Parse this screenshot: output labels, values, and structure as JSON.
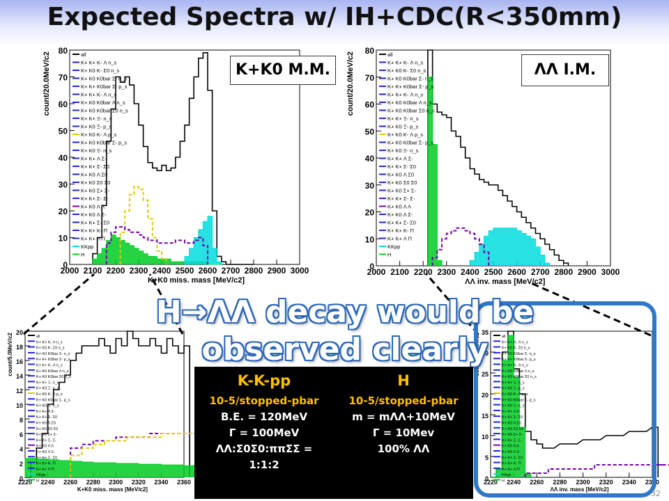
{
  "title": "Expected Spectra w/ IH+CDC(R<350mm)",
  "callout": [
    "H→ΛΛ decay would be",
    "observed clearly"
  ],
  "page_number": "32",
  "legend_entries": [
    "all",
    "K+ K+ K- Λ n_s",
    "K+ K0 K- Σ0 n_s",
    "K+ K0 K0bar Σ- n_s",
    "K+ K+ K0bar Σ- p_s",
    "K+ K+ K- Λ n_s",
    "K+ K0 K0bar Λ n_s",
    "K+ K0 K0bar Σ0 n_s",
    "K+ K+ Ξ- n_s",
    "K+ K0 Ξ- p_s",
    "K+ K0 K- Λ p_s",
    "K+ K0 K0bar Σ- p_s",
    "K+ K0 Ξ- n_s",
    "K+ K+ Λ Σ-",
    "K+ K+ Σ- Σ0",
    "K+ K0 Λ Σ0",
    "K+ K0 Σ0 Σ0",
    "K+ K0 Σ+ Σ-",
    "K+ K+ Σ- Σ-",
    "K+ K0 Λ Λ",
    "K+ K0 Λ Σ-",
    "K+ K+ Σ- Σ0",
    "K+ K+ K- Π",
    "K+ K+ Λ Π",
    "KKpp",
    "H"
  ],
  "info": {
    "left": {
      "header": "K-K-pp",
      "rate": "10-5/stopped-pbar",
      "be": "B.E. = 120MeV",
      "gamma": "Γ = 100MeV",
      "ratio": "ΛΛ:Σ0Σ0:ππΣΣ =",
      "ratio2": "1:1:2"
    },
    "right": {
      "header": "H",
      "rate": "10-5/stopped-pbar",
      "mass": "m = mΛΛ+10MeV",
      "gamma": "Γ = 10Mev",
      "br": "100% ΛΛ"
    }
  },
  "colors": {
    "all": "#000000",
    "H": "#00cc22",
    "KKpp": "#00dddd",
    "s1": "#dd0000",
    "s2": "#2222dd",
    "s3": "#7700aa",
    "s4": "#ddcc00",
    "s5": "#009900",
    "s6": "#ff66cc",
    "s7": "#996600",
    "s8": "#00aaaa"
  },
  "chart_data": [
    {
      "type": "line",
      "tag": "K+K0 M.M.",
      "xlabel": "K+K0 miss. mass [MeV/c2]",
      "ylabel": "count/20.0MeV/c2",
      "xlim": [
        2000,
        3000
      ],
      "ylim": [
        0,
        80
      ],
      "xticks": [
        2000,
        2100,
        2200,
        2300,
        2400,
        2500,
        2600,
        2700,
        2800,
        2900,
        3000
      ],
      "yticks": [
        0,
        10,
        20,
        30,
        40,
        50,
        60,
        70,
        80
      ],
      "series": [
        {
          "name": "all",
          "x": [
            2100,
            2120,
            2140,
            2160,
            2180,
            2200,
            2220,
            2240,
            2260,
            2280,
            2300,
            2320,
            2340,
            2360,
            2380,
            2400,
            2420,
            2440,
            2460,
            2480,
            2500,
            2520,
            2540,
            2560,
            2580,
            2600,
            2620,
            2640,
            2660,
            2680,
            2700,
            2720,
            2740,
            2760,
            2780
          ],
          "values": [
            4,
            10,
            22,
            46,
            58,
            70,
            68,
            70,
            67,
            60,
            52,
            44,
            38,
            36,
            35,
            37,
            35,
            36,
            40,
            46,
            52,
            62,
            70,
            77,
            79,
            65,
            20,
            3,
            1,
            0,
            0,
            0,
            0,
            0,
            0
          ]
        },
        {
          "name": "H",
          "x": [
            2100,
            2120,
            2140,
            2160,
            2180,
            2200,
            2220,
            2240,
            2260,
            2280,
            2300,
            2320,
            2340,
            2360,
            2380,
            2400,
            2420,
            2440,
            2460,
            2480,
            2500,
            2520,
            2540,
            2560,
            2580,
            2600,
            2620,
            2640
          ],
          "values": [
            2,
            4,
            6,
            9,
            11,
            10,
            9,
            8,
            7,
            6,
            5,
            4,
            3,
            3,
            2,
            2,
            2,
            1,
            1,
            1,
            1,
            1,
            1,
            1,
            1,
            0,
            0,
            0
          ]
        },
        {
          "name": "KKpp",
          "x": [
            2500,
            2520,
            2540,
            2560,
            2580,
            2600,
            2620,
            2640
          ],
          "values": [
            3,
            6,
            10,
            13,
            16,
            18,
            6,
            1
          ]
        },
        {
          "name": "K+ K0 K- Λ p_s",
          "x": [
            2220,
            2240,
            2260,
            2280,
            2300,
            2320,
            2340,
            2360,
            2380,
            2400
          ],
          "values": [
            12,
            20,
            26,
            29,
            28,
            24,
            17,
            10,
            5,
            2
          ]
        },
        {
          "name": "K+ K0 Λ Λ",
          "x": [
            2160,
            2180,
            2200,
            2220,
            2240,
            2260,
            2280,
            2300,
            2320,
            2340,
            2360,
            2380,
            2400,
            2420,
            2440,
            2460,
            2480,
            2500,
            2520,
            2540,
            2560,
            2580
          ],
          "values": [
            8,
            12,
            14,
            14,
            13,
            12,
            12,
            11,
            10,
            9,
            9,
            8,
            8,
            8,
            8,
            9,
            9,
            8,
            8,
            9,
            10,
            7
          ]
        }
      ]
    },
    {
      "type": "line",
      "tag": "ΛΛ I.M.",
      "xlabel": "ΛΛ inv. mass [MeV/c2]",
      "ylabel": "count/20.0MeV/c2",
      "xlim": [
        2000,
        3000
      ],
      "ylim": [
        0,
        80
      ],
      "xticks": [
        2000,
        2100,
        2200,
        2300,
        2400,
        2500,
        2600,
        2700,
        2800,
        2900,
        3000
      ],
      "yticks": [
        0,
        10,
        20,
        30,
        40,
        50,
        60,
        70,
        80
      ],
      "series": [
        {
          "name": "all",
          "x": [
            2220,
            2240,
            2260,
            2280,
            2300,
            2320,
            2340,
            2360,
            2380,
            2400,
            2420,
            2440,
            2460,
            2480,
            2500,
            2520,
            2540,
            2560,
            2580,
            2600,
            2620,
            2640,
            2660,
            2680,
            2700,
            2720,
            2740,
            2760,
            2780,
            2800
          ],
          "values": [
            80,
            60,
            57,
            56,
            55,
            50,
            48,
            44,
            40,
            36,
            34,
            32,
            31,
            30,
            30,
            28,
            26,
            24,
            22,
            20,
            18,
            16,
            14,
            12,
            10,
            8,
            6,
            4,
            2,
            1
          ]
        },
        {
          "name": "H",
          "x": [
            2220,
            2240,
            2260
          ],
          "values": [
            70,
            45,
            2
          ]
        },
        {
          "name": "KKpp",
          "x": [
            2400,
            2420,
            2440,
            2460,
            2480,
            2500,
            2520,
            2540,
            2560,
            2580,
            2600,
            2620,
            2640,
            2660,
            2680,
            2700,
            2720
          ],
          "values": [
            2,
            5,
            8,
            11,
            13,
            14,
            14,
            14,
            14,
            14,
            13,
            12,
            11,
            10,
            7,
            4,
            1
          ]
        },
        {
          "name": "K+ K0 Λ Λ",
          "x": [
            2240,
            2260,
            2280,
            2300,
            2320,
            2340,
            2360,
            2380,
            2400,
            2420,
            2440,
            2460
          ],
          "values": [
            3,
            6,
            10,
            12,
            13,
            14,
            14,
            13,
            12,
            10,
            8,
            5
          ]
        }
      ]
    },
    {
      "type": "line",
      "xlabel": "K+K0 miss. mass [MeV/c2]",
      "ylabel": "count/5.0MeV/c2",
      "xlim": [
        2220,
        2360
      ],
      "ylim": [
        0,
        20
      ],
      "xticks": [
        2220,
        2240,
        2260,
        2280,
        2300,
        2320,
        2340,
        2360
      ],
      "yticks": [
        0,
        2,
        4,
        6,
        8,
        10,
        12,
        14,
        16,
        18,
        20
      ],
      "series": [
        {
          "name": "all",
          "x": [
            2220,
            2225,
            2230,
            2235,
            2240,
            2245,
            2250,
            2255,
            2260,
            2265,
            2270,
            2275,
            2280,
            2285,
            2290,
            2295,
            2300,
            2305,
            2310,
            2315,
            2320,
            2325,
            2330,
            2335,
            2340,
            2345,
            2350,
            2355,
            2360
          ],
          "values": [
            0,
            2,
            4,
            6,
            10,
            12,
            13,
            14,
            16,
            17,
            18,
            18,
            18,
            19,
            18,
            17,
            19,
            18,
            20,
            19,
            18,
            18,
            19,
            18,
            17,
            19,
            18,
            17,
            18
          ]
        },
        {
          "name": "H",
          "x": [
            2220,
            2230,
            2240,
            2250,
            2260,
            2270,
            2280,
            2290,
            2300,
            2310,
            2320,
            2330,
            2340,
            2350,
            2360
          ],
          "values": [
            2.6,
            2.5,
            2.4,
            2.3,
            2.2,
            2.1,
            2.0,
            2.0,
            1.9,
            1.9,
            1.8,
            1.8,
            1.7,
            1.7,
            1.6
          ]
        },
        {
          "name": "K+ K0 Λ Λ",
          "x": [
            2260,
            2270,
            2280,
            2290,
            2300,
            2310,
            2320,
            2330,
            2340,
            2350,
            2360
          ],
          "values": [
            4,
            4.5,
            5,
            5,
            5.5,
            5.5,
            5.5,
            6,
            6,
            6,
            6
          ]
        },
        {
          "name": "K+ K0 K- Λ p_s",
          "x": [
            2260,
            2270,
            2280,
            2290,
            2300,
            2310,
            2320,
            2330,
            2340,
            2350,
            2360
          ],
          "values": [
            3,
            4,
            4.5,
            5,
            5,
            5.5,
            5.5,
            5.5,
            6,
            6,
            6
          ]
        }
      ]
    },
    {
      "type": "line",
      "xlabel": "ΛΛ inv. mass [MeV/c2]",
      "ylabel": "count/5.0MeV/c2",
      "xlim": [
        2220,
        2360
      ],
      "ylim": [
        0,
        35
      ],
      "xticks": [
        2220,
        2240,
        2260,
        2280,
        2300,
        2320,
        2340,
        2360
      ],
      "yticks": [
        0,
        5,
        10,
        15,
        20,
        25,
        30,
        35
      ],
      "series": [
        {
          "name": "all",
          "x": [
            2220,
            2225,
            2230,
            2235,
            2240,
            2245,
            2250,
            2255,
            2260,
            2265,
            2270,
            2280,
            2290,
            2300,
            2310,
            2320,
            2330,
            2340,
            2350,
            2360
          ],
          "values": [
            0,
            2,
            30,
            35,
            26,
            20,
            11,
            9,
            8,
            7,
            7,
            8,
            8,
            9,
            9,
            10,
            10,
            11,
            11,
            12
          ]
        },
        {
          "name": "H",
          "x": [
            2220,
            2225,
            2230,
            2235,
            2240,
            2245,
            2250
          ],
          "values": [
            0,
            2,
            28,
            34,
            24,
            12,
            1
          ]
        },
        {
          "name": "K+ K0 Λ Λ",
          "x": [
            2250,
            2270,
            2290,
            2310,
            2330,
            2350,
            2360
          ],
          "values": [
            1,
            2,
            2,
            3,
            3,
            3,
            3
          ]
        }
      ]
    }
  ]
}
